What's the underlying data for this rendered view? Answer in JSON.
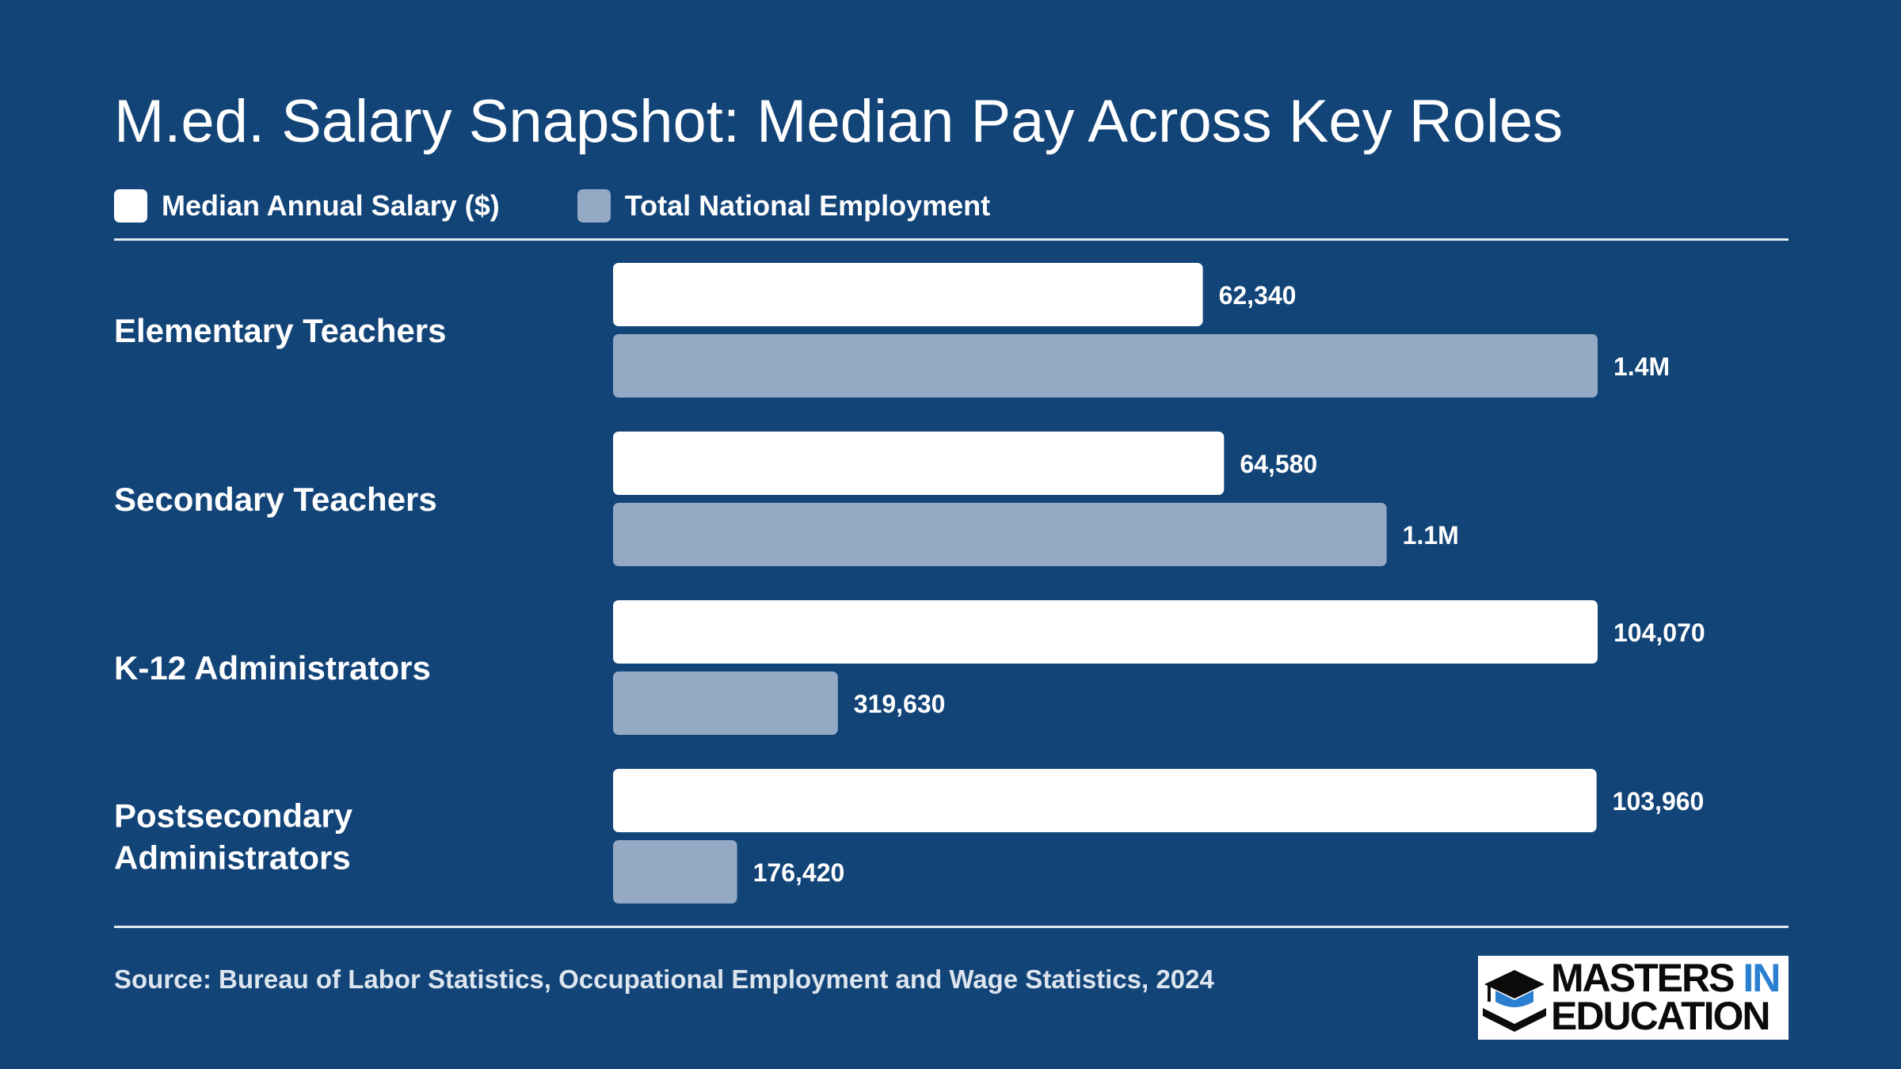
{
  "title": "M.ed. Salary Snapshot: Median Pay Across Key Roles",
  "legend": [
    {
      "label": "Median Annual Salary ($)",
      "color": "#ffffff"
    },
    {
      "label": "Total National Employment",
      "color": "#94aac4"
    }
  ],
  "source": "Source: Bureau of Labor Statistics, Occupational Employment and Wage Statistics, 2024",
  "logo": {
    "line1_a": "MASTERS",
    "line1_b": "IN",
    "line2": "EDUCATION",
    "icon": "graduation-cap-book-icon"
  },
  "colors": {
    "background": "#124478",
    "salary_bar": "#ffffff",
    "employment_bar": "#94aac4",
    "accent": "#2a7fd0"
  },
  "chart_data": {
    "type": "bar",
    "orientation": "horizontal",
    "title": "M.ed. Salary Snapshot: Median Pay Across Key Roles",
    "categories": [
      "Elementary Teachers",
      "Secondary Teachers",
      "K-12 Administrators",
      "Postsecondary Administrators"
    ],
    "series": [
      {
        "name": "Median Annual Salary ($)",
        "values": [
          62340,
          64580,
          104070,
          103960
        ],
        "labels": [
          "62,340",
          "64,580",
          "104,070",
          "103,960"
        ],
        "max": 104070
      },
      {
        "name": "Total National Employment",
        "values": [
          1400000,
          1100000,
          319630,
          176420
        ],
        "labels": [
          "1.4M",
          "1.1M",
          "319,630",
          "176,420"
        ],
        "max": 1400000
      }
    ],
    "legend": "top-left",
    "grid": false
  }
}
